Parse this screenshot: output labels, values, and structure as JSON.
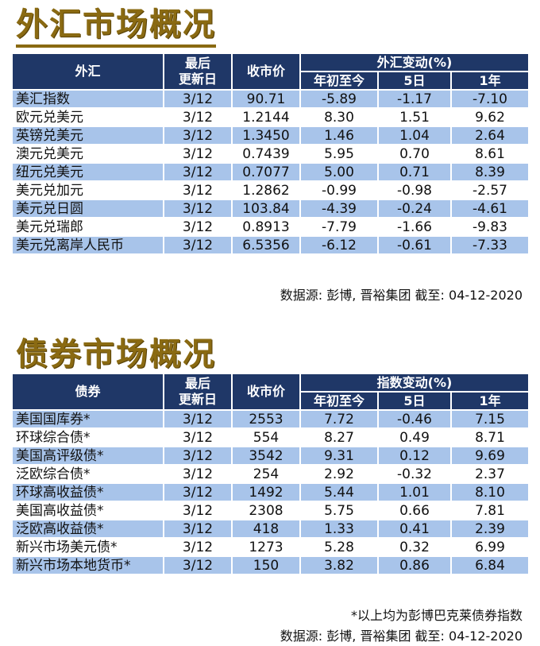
{
  "fx": {
    "title": "外汇市场概况",
    "headers": {
      "name": "外汇",
      "last_update_line1": "最后",
      "last_update_line2": "更新日",
      "close": "收市价",
      "change_group": "外汇变动(%)",
      "ytd": "年初至今",
      "d5": "5日",
      "y1": "1年"
    },
    "rows": [
      {
        "name": "美汇指数",
        "date": "3/12",
        "close": "90.71",
        "ytd": "-5.89",
        "d5": "-1.17",
        "y1": "-7.10"
      },
      {
        "name": "欧元兑美元",
        "date": "3/12",
        "close": "1.2144",
        "ytd": "8.30",
        "d5": "1.51",
        "y1": "9.62"
      },
      {
        "name": "英镑兑美元",
        "date": "3/12",
        "close": "1.3450",
        "ytd": "1.46",
        "d5": "1.04",
        "y1": "2.64"
      },
      {
        "name": "澳元兑美元",
        "date": "3/12",
        "close": "0.7439",
        "ytd": "5.95",
        "d5": "0.70",
        "y1": "8.61"
      },
      {
        "name": "纽元兑美元",
        "date": "3/12",
        "close": "0.7077",
        "ytd": "5.00",
        "d5": "0.71",
        "y1": "8.39"
      },
      {
        "name": "美元兑加元",
        "date": "3/12",
        "close": "1.2862",
        "ytd": "-0.99",
        "d5": "-0.98",
        "y1": "-2.57"
      },
      {
        "name": "美元兑日圆",
        "date": "3/12",
        "close": "103.84",
        "ytd": "-4.39",
        "d5": "-0.24",
        "y1": "-4.61"
      },
      {
        "name": "美元兑瑞郎",
        "date": "3/12",
        "close": "0.8913",
        "ytd": "-7.79",
        "d5": "-1.66",
        "y1": "-9.83"
      },
      {
        "name": "美元兑离岸人民币",
        "date": "3/12",
        "close": "6.5356",
        "ytd": "-6.12",
        "d5": "-0.61",
        "y1": "-7.33"
      }
    ],
    "source": "数据源: 彭博, 晋裕集团 截至: 04-12-2020"
  },
  "bonds": {
    "title": "债券市场概况",
    "headers": {
      "name": "债券",
      "last_update_line1": "最后",
      "last_update_line2": "更新日",
      "close": "收市价",
      "change_group": "指数变动(%)",
      "ytd": "年初至今",
      "d5": "5日",
      "y1": "1年"
    },
    "rows": [
      {
        "name": "美国国库券*",
        "date": "3/12",
        "close": "2553",
        "ytd": "7.72",
        "d5": "-0.46",
        "y1": "7.15"
      },
      {
        "name": "环球综合债*",
        "date": "3/12",
        "close": "554",
        "ytd": "8.27",
        "d5": "0.49",
        "y1": "8.71"
      },
      {
        "name": "美国高评级债*",
        "date": "3/12",
        "close": "3542",
        "ytd": "9.31",
        "d5": "0.12",
        "y1": "9.69"
      },
      {
        "name": "泛欧综合债*",
        "date": "3/12",
        "close": "254",
        "ytd": "2.92",
        "d5": "-0.32",
        "y1": "2.37"
      },
      {
        "name": "环球高收益债*",
        "date": "3/12",
        "close": "1492",
        "ytd": "5.44",
        "d5": "1.01",
        "y1": "8.10"
      },
      {
        "name": "美国高收益债*",
        "date": "3/12",
        "close": "2308",
        "ytd": "5.75",
        "d5": "0.66",
        "y1": "7.81"
      },
      {
        "name": "泛欧高收益债*",
        "date": "3/12",
        "close": "418",
        "ytd": "1.33",
        "d5": "0.41",
        "y1": "2.39"
      },
      {
        "name": "新兴市场美元债*",
        "date": "3/12",
        "close": "1273",
        "ytd": "5.28",
        "d5": "0.32",
        "y1": "6.99"
      },
      {
        "name": "新兴市场本地货币*",
        "date": "3/12",
        "close": "150",
        "ytd": "3.82",
        "d5": "0.86",
        "y1": "6.84"
      }
    ],
    "note": "*以上均为彭博巴克莱债券指数",
    "source": "数据源: 彭博, 晋裕集团 截至: 04-12-2020"
  },
  "colors": {
    "title": "#8a6a12",
    "header_bg": "#1f3767",
    "stripe": "#a8c4ea"
  }
}
